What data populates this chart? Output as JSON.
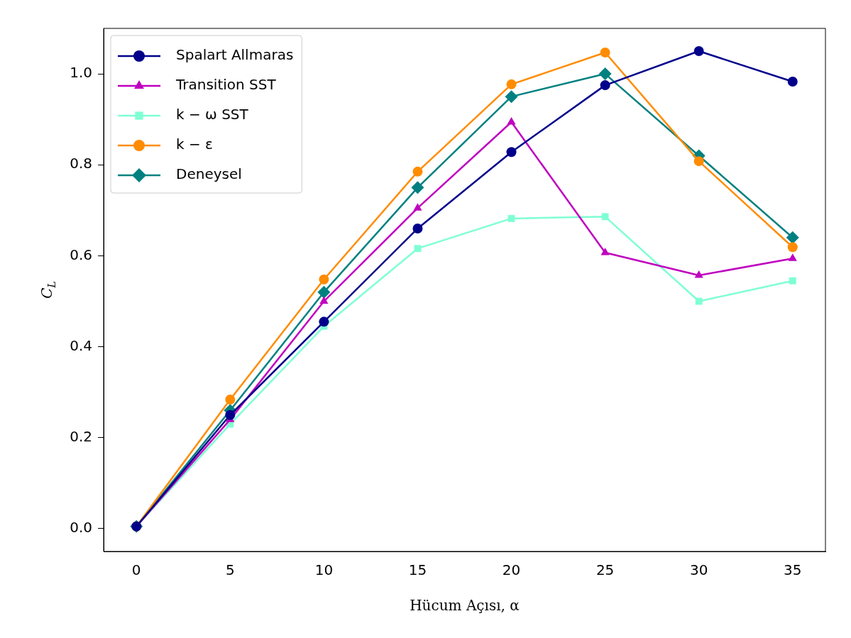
{
  "chart_data": {
    "type": "line",
    "xlabel": "Hücum Açısı, α",
    "ylabel": "C$_{L}$",
    "x": [
      0,
      5,
      10,
      15,
      20,
      25,
      30,
      35
    ],
    "series": [
      {
        "name": "Spalart Allmaras",
        "color": "#00008b",
        "marker": "circle",
        "values": [
          0.005,
          0.25,
          0.455,
          0.66,
          0.828,
          0.975,
          1.05,
          0.983
        ]
      },
      {
        "name": "Transition SST",
        "color": "#bf00bf",
        "marker": "triangle",
        "values": [
          0.005,
          0.24,
          0.5,
          0.705,
          0.894,
          0.607,
          0.557,
          0.594
        ]
      },
      {
        "name": "k − ω SST",
        "color": "#7fffd4",
        "marker": "square",
        "values": [
          0.005,
          0.23,
          0.445,
          0.616,
          0.682,
          0.686,
          0.5,
          0.545
        ]
      },
      {
        "name": "k − ε",
        "color": "#ff8c00",
        "marker": "circle",
        "values": [
          0.005,
          0.284,
          0.548,
          0.785,
          0.977,
          1.047,
          0.808,
          0.619
        ]
      },
      {
        "name": "Deneysel",
        "color": "#008080",
        "marker": "diamond",
        "values": [
          0.005,
          0.26,
          0.52,
          0.75,
          0.95,
          1.0,
          0.82,
          0.64
        ]
      }
    ],
    "xlim": [
      -1.75,
      36.75
    ],
    "xticks": [
      0,
      5,
      10,
      15,
      20,
      25,
      30,
      35
    ],
    "ylim": [
      -0.05,
      1.1
    ],
    "yticks": [
      {
        "value": 0,
        "label": "0.0"
      },
      {
        "value": 0.2,
        "label": "0.2"
      },
      {
        "value": 0.4,
        "label": "0.4"
      },
      {
        "value": 0.6,
        "label": "0.6"
      },
      {
        "value": 0.8,
        "label": "0.8"
      },
      {
        "value": 1.0,
        "label": "1.0"
      }
    ],
    "grid": false,
    "legend": "top left",
    "line_style": "solid"
  }
}
